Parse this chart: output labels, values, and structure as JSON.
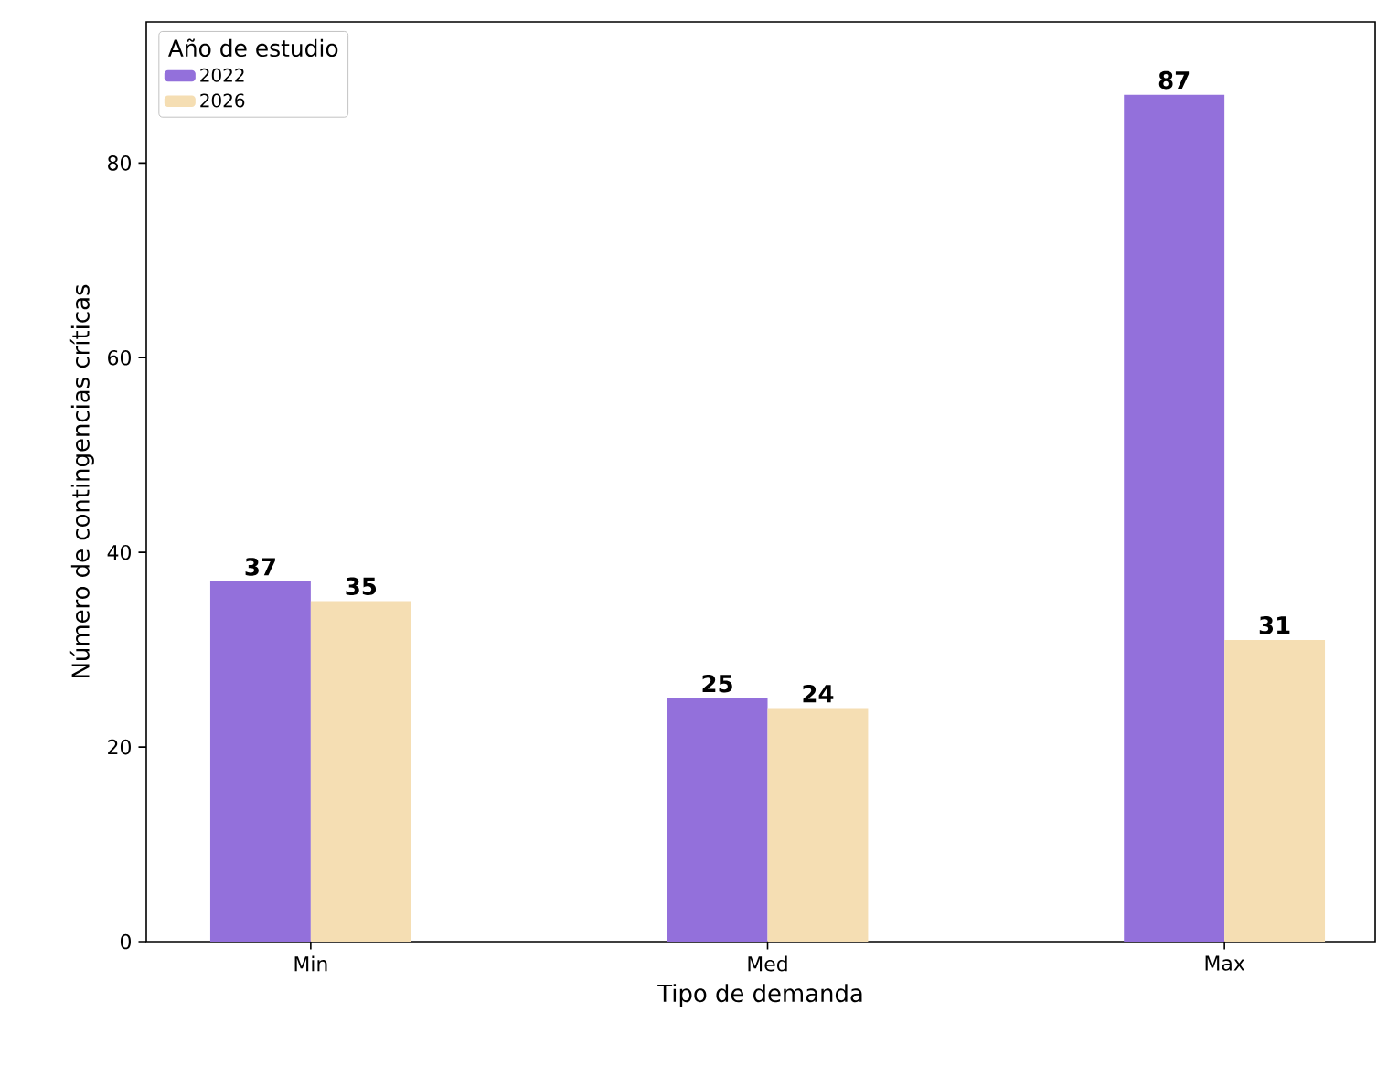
{
  "chart_data": {
    "type": "bar",
    "xlabel": "Tipo de demanda",
    "ylabel": "Número de contingencias críticas",
    "legend_title": "Año de estudio",
    "categories": [
      "Min",
      "Med",
      "Max"
    ],
    "series": [
      {
        "name": "2022",
        "color": "#9370db",
        "values": [
          37,
          25,
          87
        ]
      },
      {
        "name": "2026",
        "color": "#f5deb3",
        "values": [
          35,
          24,
          31
        ]
      }
    ],
    "ylim": [
      0,
      94.5
    ],
    "yticks": [
      0,
      20,
      40,
      60,
      80
    ],
    "data_labels": true,
    "legend": "top left",
    "grid": false
  }
}
